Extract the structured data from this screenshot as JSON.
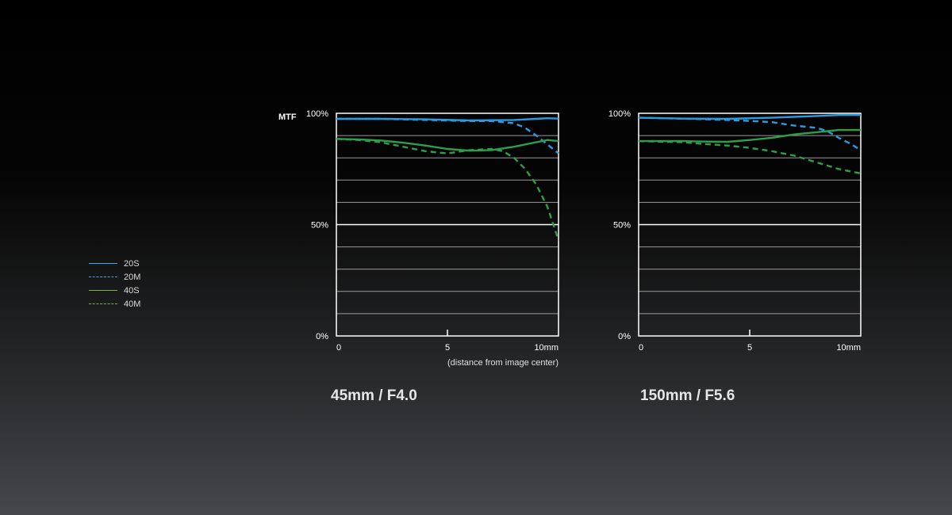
{
  "legend": [
    {
      "label": "20S",
      "color": "#3fa9e0",
      "dash": "solid"
    },
    {
      "label": "20M",
      "color": "#3fa9e0",
      "dash": "dashed"
    },
    {
      "label": "40S",
      "color": "#7cb342",
      "dash": "solid"
    },
    {
      "label": "40M",
      "color": "#7cb342",
      "dash": "dashed"
    }
  ],
  "ylabel": "MTF",
  "xlabel": "(distance from image center)",
  "chart_data": [
    {
      "type": "line",
      "title": "45mm / F4.0",
      "xlim": [
        0,
        10
      ],
      "ylim": [
        0,
        100
      ],
      "xticks": [
        "0",
        "5",
        "10mm"
      ],
      "yticks": [
        "0%",
        "50%",
        "100%"
      ],
      "series": [
        {
          "name": "20S",
          "color": "#2b9be0",
          "dash": false,
          "x": [
            0,
            2,
            4,
            6,
            8,
            9,
            9.5,
            10
          ],
          "y": [
            97.5,
            97.5,
            97.3,
            96.8,
            97,
            97.5,
            97.8,
            97.6
          ]
        },
        {
          "name": "20M",
          "color": "#2b9be0",
          "dash": true,
          "x": [
            0,
            2,
            4,
            6,
            7,
            8,
            8.5,
            9,
            9.5,
            10
          ],
          "y": [
            97.5,
            97.5,
            97,
            96.5,
            96.5,
            95.5,
            93.5,
            90,
            86,
            82
          ]
        },
        {
          "name": "40S",
          "color": "#2e9e4b",
          "dash": false,
          "x": [
            0,
            1,
            2,
            3,
            4,
            5,
            6,
            7,
            8,
            9,
            9.5,
            10
          ],
          "y": [
            88.5,
            88.3,
            87.8,
            86.8,
            85.5,
            84,
            83.2,
            83.5,
            85,
            87,
            88,
            87.5
          ]
        },
        {
          "name": "40M",
          "color": "#2e9e4b",
          "dash": true,
          "x": [
            0,
            1,
            2,
            3,
            4,
            5,
            6,
            7,
            7.5,
            8,
            8.5,
            9,
            9.5,
            10
          ],
          "y": [
            88.5,
            88,
            87,
            85,
            83,
            82,
            83.5,
            84,
            83,
            80,
            75,
            68,
            58,
            43
          ]
        }
      ]
    },
    {
      "type": "line",
      "title": "150mm / F5.6",
      "xlim": [
        0,
        10
      ],
      "ylim": [
        0,
        100
      ],
      "xticks": [
        "0",
        "5",
        "10mm"
      ],
      "yticks": [
        "0%",
        "50%",
        "100%"
      ],
      "series": [
        {
          "name": "20S",
          "color": "#2b9be0",
          "dash": false,
          "x": [
            0,
            2,
            4,
            6,
            8,
            9,
            10
          ],
          "y": [
            98,
            97.6,
            97.5,
            98,
            98.8,
            99.2,
            99.2
          ]
        },
        {
          "name": "20M",
          "color": "#2b9be0",
          "dash": true,
          "x": [
            0,
            2,
            4,
            5,
            6,
            7,
            8,
            8.5,
            9,
            9.5,
            10
          ],
          "y": [
            98,
            97.6,
            97,
            96.6,
            96,
            94.5,
            93.5,
            92,
            89,
            86.5,
            83.5
          ]
        },
        {
          "name": "40S",
          "color": "#2e9e4b",
          "dash": false,
          "x": [
            0,
            2,
            3,
            4,
            5,
            6,
            7,
            8,
            9,
            10
          ],
          "y": [
            87.5,
            87.5,
            87.3,
            87.2,
            88,
            89,
            90.5,
            91.5,
            92.5,
            92.5
          ]
        },
        {
          "name": "40M",
          "color": "#2e9e4b",
          "dash": true,
          "x": [
            0,
            2,
            3,
            4,
            5,
            6,
            7,
            8,
            9,
            10
          ],
          "y": [
            87.5,
            87,
            86.2,
            85.5,
            84.5,
            83,
            81,
            78,
            75,
            73
          ]
        }
      ]
    }
  ]
}
